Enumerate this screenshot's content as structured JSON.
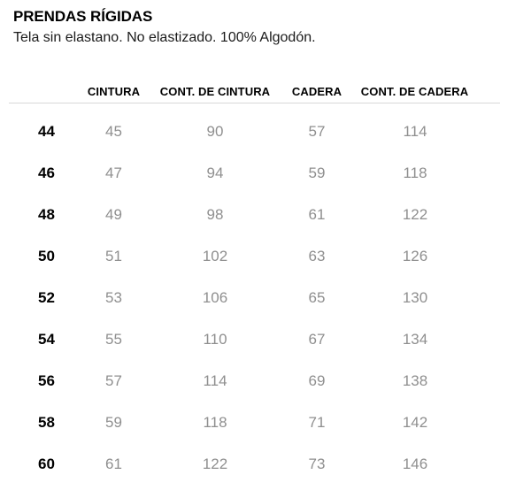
{
  "page": {
    "title": "PRENDAS RÍGIDAS",
    "subtitle": "Tela sin elastano. No elastizado. 100% Algodón."
  },
  "size_table": {
    "column_headers": [
      "CINTURA",
      "CONT. DE CINTURA",
      "CADERA",
      "CONT. DE CADERA"
    ],
    "rows": [
      {
        "size": "44",
        "cintura": "45",
        "cont_de_cintura": "90",
        "cadera": "57",
        "cont_de_cadera": "114"
      },
      {
        "size": "46",
        "cintura": "47",
        "cont_de_cintura": "94",
        "cadera": "59",
        "cont_de_cadera": "118"
      },
      {
        "size": "48",
        "cintura": "49",
        "cont_de_cintura": "98",
        "cadera": "61",
        "cont_de_cadera": "122"
      },
      {
        "size": "50",
        "cintura": "51",
        "cont_de_cintura": "102",
        "cadera": "63",
        "cont_de_cadera": "126"
      },
      {
        "size": "52",
        "cintura": "53",
        "cont_de_cintura": "106",
        "cadera": "65",
        "cont_de_cadera": "130"
      },
      {
        "size": "54",
        "cintura": "55",
        "cont_de_cintura": "110",
        "cadera": "67",
        "cont_de_cadera": "134"
      },
      {
        "size": "56",
        "cintura": "57",
        "cont_de_cintura": "114",
        "cadera": "69",
        "cont_de_cadera": "138"
      },
      {
        "size": "58",
        "cintura": "59",
        "cont_de_cintura": "118",
        "cadera": "71",
        "cont_de_cadera": "142"
      },
      {
        "size": "60",
        "cintura": "61",
        "cont_de_cintura": "122",
        "cadera": "73",
        "cont_de_cadera": "146"
      }
    ]
  },
  "colors": {
    "heading_text": "#000000",
    "body_text": "#1a1a1a",
    "value_text": "#8f8f8f",
    "header_rule": "#d8d8d8",
    "background": "#ffffff"
  }
}
